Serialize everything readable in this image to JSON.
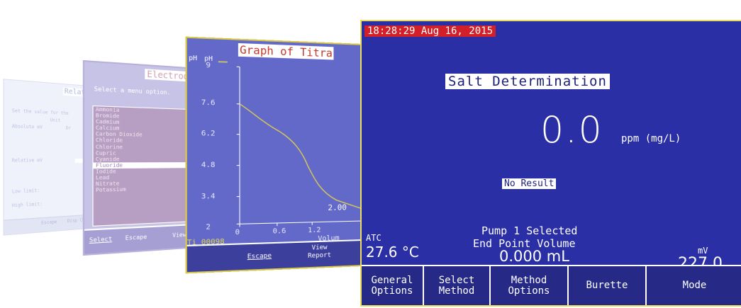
{
  "screen1": {
    "title": "Relative",
    "rows": [
      {
        "label": "Set the value for the",
        "field": ""
      },
      {
        "label": "Unit",
        "field": ""
      },
      {
        "label": "Absolute mV",
        "field": "Dr"
      },
      {
        "label": "Relative mV",
        "field": ""
      },
      {
        "label": "Low limit:",
        "field": ""
      },
      {
        "label": "High limit:",
        "field": ""
      }
    ],
    "buttons": [
      "Escape",
      "Disp Chan"
    ]
  },
  "screen2": {
    "title": "Electrod",
    "prompt": "Select a menu option.",
    "items": [
      "Ammonia",
      "Bromide",
      "Cadmium",
      "Calcium",
      "Carbon Dioxide",
      "Chloride",
      "Chlorine",
      "Cupric",
      "Cyanide",
      "Fluoride",
      "Iodide",
      "Lead",
      "Nitrate",
      "Potassium"
    ],
    "selected_index": 9,
    "buttons": [
      "Select",
      "Escape",
      "View"
    ]
  },
  "screen3": {
    "title": "Graph of Titra",
    "y_label": "pH",
    "legend_label": "pH",
    "y_ticks": [
      "9",
      "7.6",
      "6.2",
      "4.8",
      "3.4",
      "2"
    ],
    "x_ticks": [
      "0",
      "0.6",
      "1.2"
    ],
    "x_label": "Volum",
    "annotation": "2.00",
    "file_name": "Ti_00098",
    "buttons": [
      "Escape",
      "View\nReport"
    ],
    "line_color": "#e3d24a"
  },
  "main": {
    "timestamp": "18:28:29 Aug 16, 2015",
    "method_title": "Salt Determination",
    "result_value": "0.0",
    "result_unit": "ppm (mg/L)",
    "result_status": "No Result",
    "pump_status": "Pump 1 Selected",
    "end_point_label": "End Point Volume",
    "end_point_value": "0.000 mL",
    "atc_label": "ATC",
    "temperature": "27.6 °C",
    "mv_label": "mV",
    "mv_value": "227.0",
    "buttons": [
      {
        "label": "General\nOptions"
      },
      {
        "label": "Select\nMethod"
      },
      {
        "label": "Method\nOptions"
      },
      {
        "label": "Burette"
      },
      {
        "label": "Mode"
      }
    ],
    "colors": {
      "background": "#2b2fa6",
      "timestamp_bg": "#d2202a",
      "frame": "#e9dd5e"
    }
  }
}
